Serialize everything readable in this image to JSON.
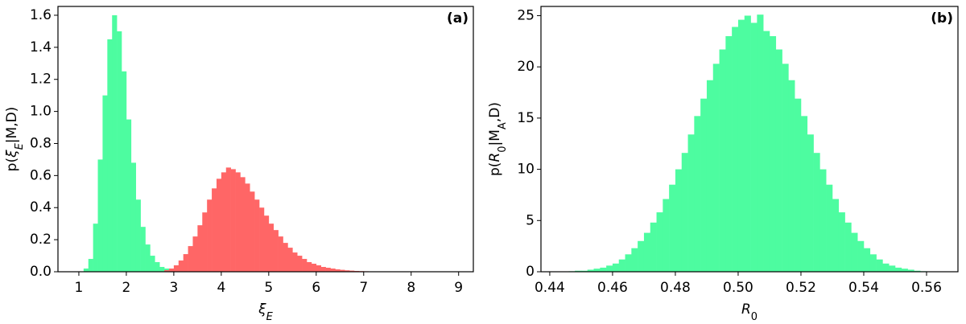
{
  "chart_data": [
    {
      "type": "histogram",
      "annotation": "(a)",
      "xlabel": [
        {
          "text": "ξ",
          "italic": true
        },
        {
          "text": "E",
          "italic": true,
          "sub": true
        }
      ],
      "ylabel": [
        {
          "text": "p("
        },
        {
          "text": "ξ",
          "italic": true
        },
        {
          "text": "E",
          "italic": true,
          "sub": true
        },
        {
          "text": "|M,D)"
        }
      ],
      "xlim": [
        0.56,
        9.31
      ],
      "ylim": [
        0,
        1.655
      ],
      "xticks": [
        1,
        2,
        3,
        4,
        5,
        6,
        7,
        8,
        9
      ],
      "yticks": [
        {
          "value": 0,
          "label": "0.0"
        },
        0.2,
        0.4,
        0.6,
        0.8,
        {
          "value": 1,
          "label": "1.0"
        },
        1.2,
        1.4,
        1.6
      ],
      "series": [
        {
          "color": "#4dfca0",
          "bins": [
            1.1,
            1.2,
            1.3,
            1.4,
            1.5,
            1.6,
            1.7,
            1.8,
            1.9,
            2.0,
            2.1,
            2.2,
            2.3,
            2.4,
            2.5,
            2.6,
            2.7,
            2.8,
            2.9,
            3.0
          ],
          "values": [
            0.02,
            0.08,
            0.3,
            0.7,
            1.1,
            1.45,
            1.6,
            1.5,
            1.25,
            0.95,
            0.68,
            0.45,
            0.28,
            0.17,
            0.1,
            0.06,
            0.03,
            0.02,
            0.01
          ]
        },
        {
          "color": "#ff6666",
          "bins": [
            2.8,
            2.9,
            3.0,
            3.1,
            3.2,
            3.3,
            3.4,
            3.5,
            3.6,
            3.7,
            3.8,
            3.9,
            4.0,
            4.1,
            4.2,
            4.3,
            4.4,
            4.5,
            4.6,
            4.7,
            4.8,
            4.9,
            5.0,
            5.1,
            5.2,
            5.3,
            5.4,
            5.5,
            5.6,
            5.7,
            5.8,
            5.9,
            6.0,
            6.1,
            6.2,
            6.3,
            6.4,
            6.5,
            6.6,
            6.7,
            6.8,
            6.9,
            7.0,
            7.1,
            7.2,
            7.3,
            7.4,
            7.5,
            7.6
          ],
          "values": [
            0.01,
            0.02,
            0.04,
            0.07,
            0.11,
            0.16,
            0.22,
            0.29,
            0.37,
            0.45,
            0.52,
            0.58,
            0.62,
            0.65,
            0.64,
            0.62,
            0.59,
            0.55,
            0.5,
            0.45,
            0.4,
            0.35,
            0.3,
            0.26,
            0.22,
            0.18,
            0.15,
            0.12,
            0.1,
            0.08,
            0.06,
            0.05,
            0.04,
            0.03,
            0.025,
            0.02,
            0.015,
            0.012,
            0.009,
            0.007,
            0.005,
            0.004,
            0.003,
            0.002,
            0.002,
            0.001,
            0.001,
            0.001
          ]
        }
      ]
    },
    {
      "type": "histogram",
      "annotation": "(b)",
      "xlabel": [
        {
          "text": "R",
          "italic": true
        },
        {
          "text": "0",
          "sub": true
        }
      ],
      "ylabel": [
        {
          "text": "p("
        },
        {
          "text": "R",
          "italic": true
        },
        {
          "text": "0",
          "sub": true
        },
        {
          "text": "|M"
        },
        {
          "text": "A",
          "sub": true
        },
        {
          "text": ",D)"
        }
      ],
      "xlim": [
        0.4372,
        0.57
      ],
      "ylim": [
        0,
        25.9
      ],
      "xticks": [
        0.44,
        0.46,
        0.48,
        {
          "value": 0.5,
          "label": "0.50"
        },
        0.52,
        0.54,
        0.56
      ],
      "yticks": [
        0,
        5,
        10,
        15,
        20,
        25
      ],
      "series": [
        {
          "color": "#4dfca0",
          "bins": [
            0.446,
            0.448,
            0.45,
            0.452,
            0.454,
            0.456,
            0.458,
            0.46,
            0.462,
            0.464,
            0.466,
            0.468,
            0.47,
            0.472,
            0.474,
            0.476,
            0.478,
            0.48,
            0.482,
            0.484,
            0.486,
            0.488,
            0.49,
            0.492,
            0.494,
            0.496,
            0.498,
            0.5,
            0.502,
            0.504,
            0.506,
            0.508,
            0.51,
            0.512,
            0.514,
            0.516,
            0.518,
            0.52,
            0.522,
            0.524,
            0.526,
            0.528,
            0.53,
            0.532,
            0.534,
            0.536,
            0.538,
            0.54,
            0.542,
            0.544,
            0.546,
            0.548,
            0.55,
            0.552,
            0.554,
            0.556,
            0.558,
            0.56
          ],
          "values": [
            0.05,
            0.1,
            0.1,
            0.2,
            0.3,
            0.4,
            0.6,
            0.8,
            1.2,
            1.7,
            2.3,
            3.0,
            3.8,
            4.8,
            5.8,
            7.1,
            8.5,
            10.0,
            11.6,
            13.4,
            15.2,
            16.9,
            18.7,
            20.3,
            21.7,
            23.0,
            23.9,
            24.6,
            25.0,
            24.3,
            25.1,
            23.5,
            23.0,
            21.7,
            20.3,
            18.7,
            16.9,
            15.2,
            13.4,
            11.6,
            10.0,
            8.5,
            7.1,
            5.8,
            4.8,
            3.8,
            3.0,
            2.3,
            1.7,
            1.2,
            0.8,
            0.6,
            0.4,
            0.3,
            0.2,
            0.1,
            0.05
          ]
        }
      ]
    }
  ]
}
